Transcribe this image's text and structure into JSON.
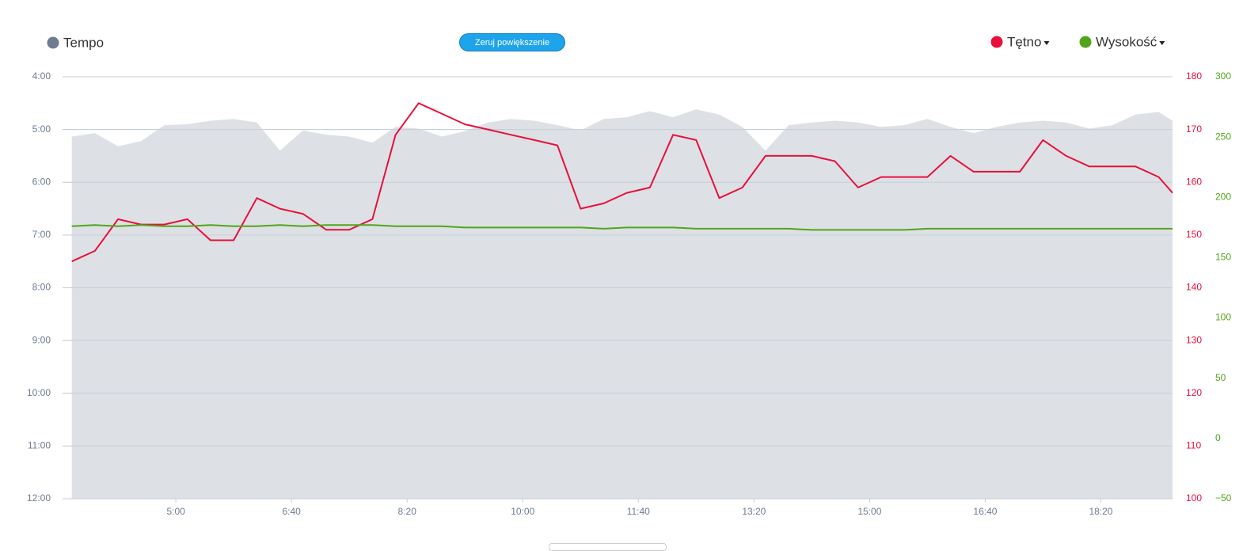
{
  "controls": {
    "reset_zoom": "Zeruj powiększenie"
  },
  "chart_data": {
    "type": "line",
    "grid": true,
    "y_inverted": true,
    "x": [
      210,
      230,
      250,
      270,
      290,
      310,
      330,
      350,
      370,
      390,
      410,
      430,
      450,
      470,
      490,
      510,
      530,
      550,
      570,
      590,
      610,
      630,
      650,
      670,
      690,
      710,
      730,
      750,
      770,
      790,
      810,
      830,
      850,
      870,
      890,
      910,
      930,
      950,
      970,
      990,
      1010,
      1030,
      1050,
      1070,
      1090,
      1110,
      1130,
      1150,
      1162
    ],
    "xlim": [
      202,
      1162
    ],
    "xticks": [
      {
        "value": 300,
        "label": "5:00"
      },
      {
        "value": 400,
        "label": "6:40"
      },
      {
        "value": 500,
        "label": "8:20"
      },
      {
        "value": 600,
        "label": "10:00"
      },
      {
        "value": 700,
        "label": "11:40"
      },
      {
        "value": 800,
        "label": "13:20"
      },
      {
        "value": 900,
        "label": "15:00"
      },
      {
        "value": 1000,
        "label": "16:40"
      },
      {
        "value": 1100,
        "label": "18:20"
      }
    ],
    "ylim": [
      240,
      720
    ],
    "yticks": [
      {
        "value": 240,
        "label": "4:00"
      },
      {
        "value": 300,
        "label": "5:00"
      },
      {
        "value": 360,
        "label": "6:00"
      },
      {
        "value": 420,
        "label": "7:00"
      },
      {
        "value": 480,
        "label": "8:00"
      },
      {
        "value": 540,
        "label": "9:00"
      },
      {
        "value": 600,
        "label": "10:00"
      },
      {
        "value": 660,
        "label": "11:00"
      },
      {
        "value": 720,
        "label": "12:00"
      }
    ],
    "y2lim": [
      100,
      180
    ],
    "y2ticks": [
      100,
      110,
      120,
      130,
      140,
      150,
      160,
      170,
      180
    ],
    "y3lim": [
      -50,
      300
    ],
    "y3ticks": [
      {
        "value": -50,
        "label": "−50"
      },
      0,
      50,
      100,
      150,
      200,
      250,
      300
    ],
    "series": [
      {
        "name": "Tempo",
        "color": "#6d7d8f",
        "fill": "#dde1e5",
        "axis": "y",
        "style": "area",
        "values": [
          308,
          304,
          319,
          313,
          295,
          294,
          290,
          288,
          292,
          324,
          301,
          306,
          308,
          315,
          297,
          299,
          308,
          302,
          292,
          288,
          290,
          295,
          301,
          288,
          286,
          279,
          286,
          277,
          283,
          297,
          324,
          295,
          292,
          290,
          292,
          297,
          295,
          288,
          297,
          304,
          297,
          292,
          290,
          292,
          299,
          295,
          283,
          280,
          290
        ]
      },
      {
        "name": "Tętno",
        "color": "#e8103b",
        "axis": "y2",
        "style": "line",
        "values": [
          145,
          147,
          153,
          152,
          152,
          153,
          149,
          149,
          157,
          155,
          154,
          151,
          151,
          153,
          169,
          175,
          173,
          171,
          170,
          169,
          168,
          167,
          155,
          156,
          158,
          159,
          169,
          168,
          157,
          159,
          165,
          165,
          165,
          164,
          159,
          161,
          161,
          161,
          165,
          162,
          162,
          162,
          168,
          165,
          163,
          163,
          163,
          161,
          158
        ]
      },
      {
        "name": "Wysokość",
        "color": "#52a51a",
        "axis": "y3",
        "style": "line",
        "values": [
          176,
          177,
          176,
          177,
          176,
          176,
          177,
          176,
          176,
          177,
          176,
          177,
          177,
          177,
          176,
          176,
          176,
          175,
          175,
          175,
          175,
          175,
          175,
          174,
          175,
          175,
          175,
          174,
          174,
          174,
          174,
          174,
          173,
          173,
          173,
          173,
          173,
          174,
          174,
          174,
          174,
          174,
          174,
          174,
          174,
          174,
          174,
          174,
          174
        ]
      }
    ]
  }
}
